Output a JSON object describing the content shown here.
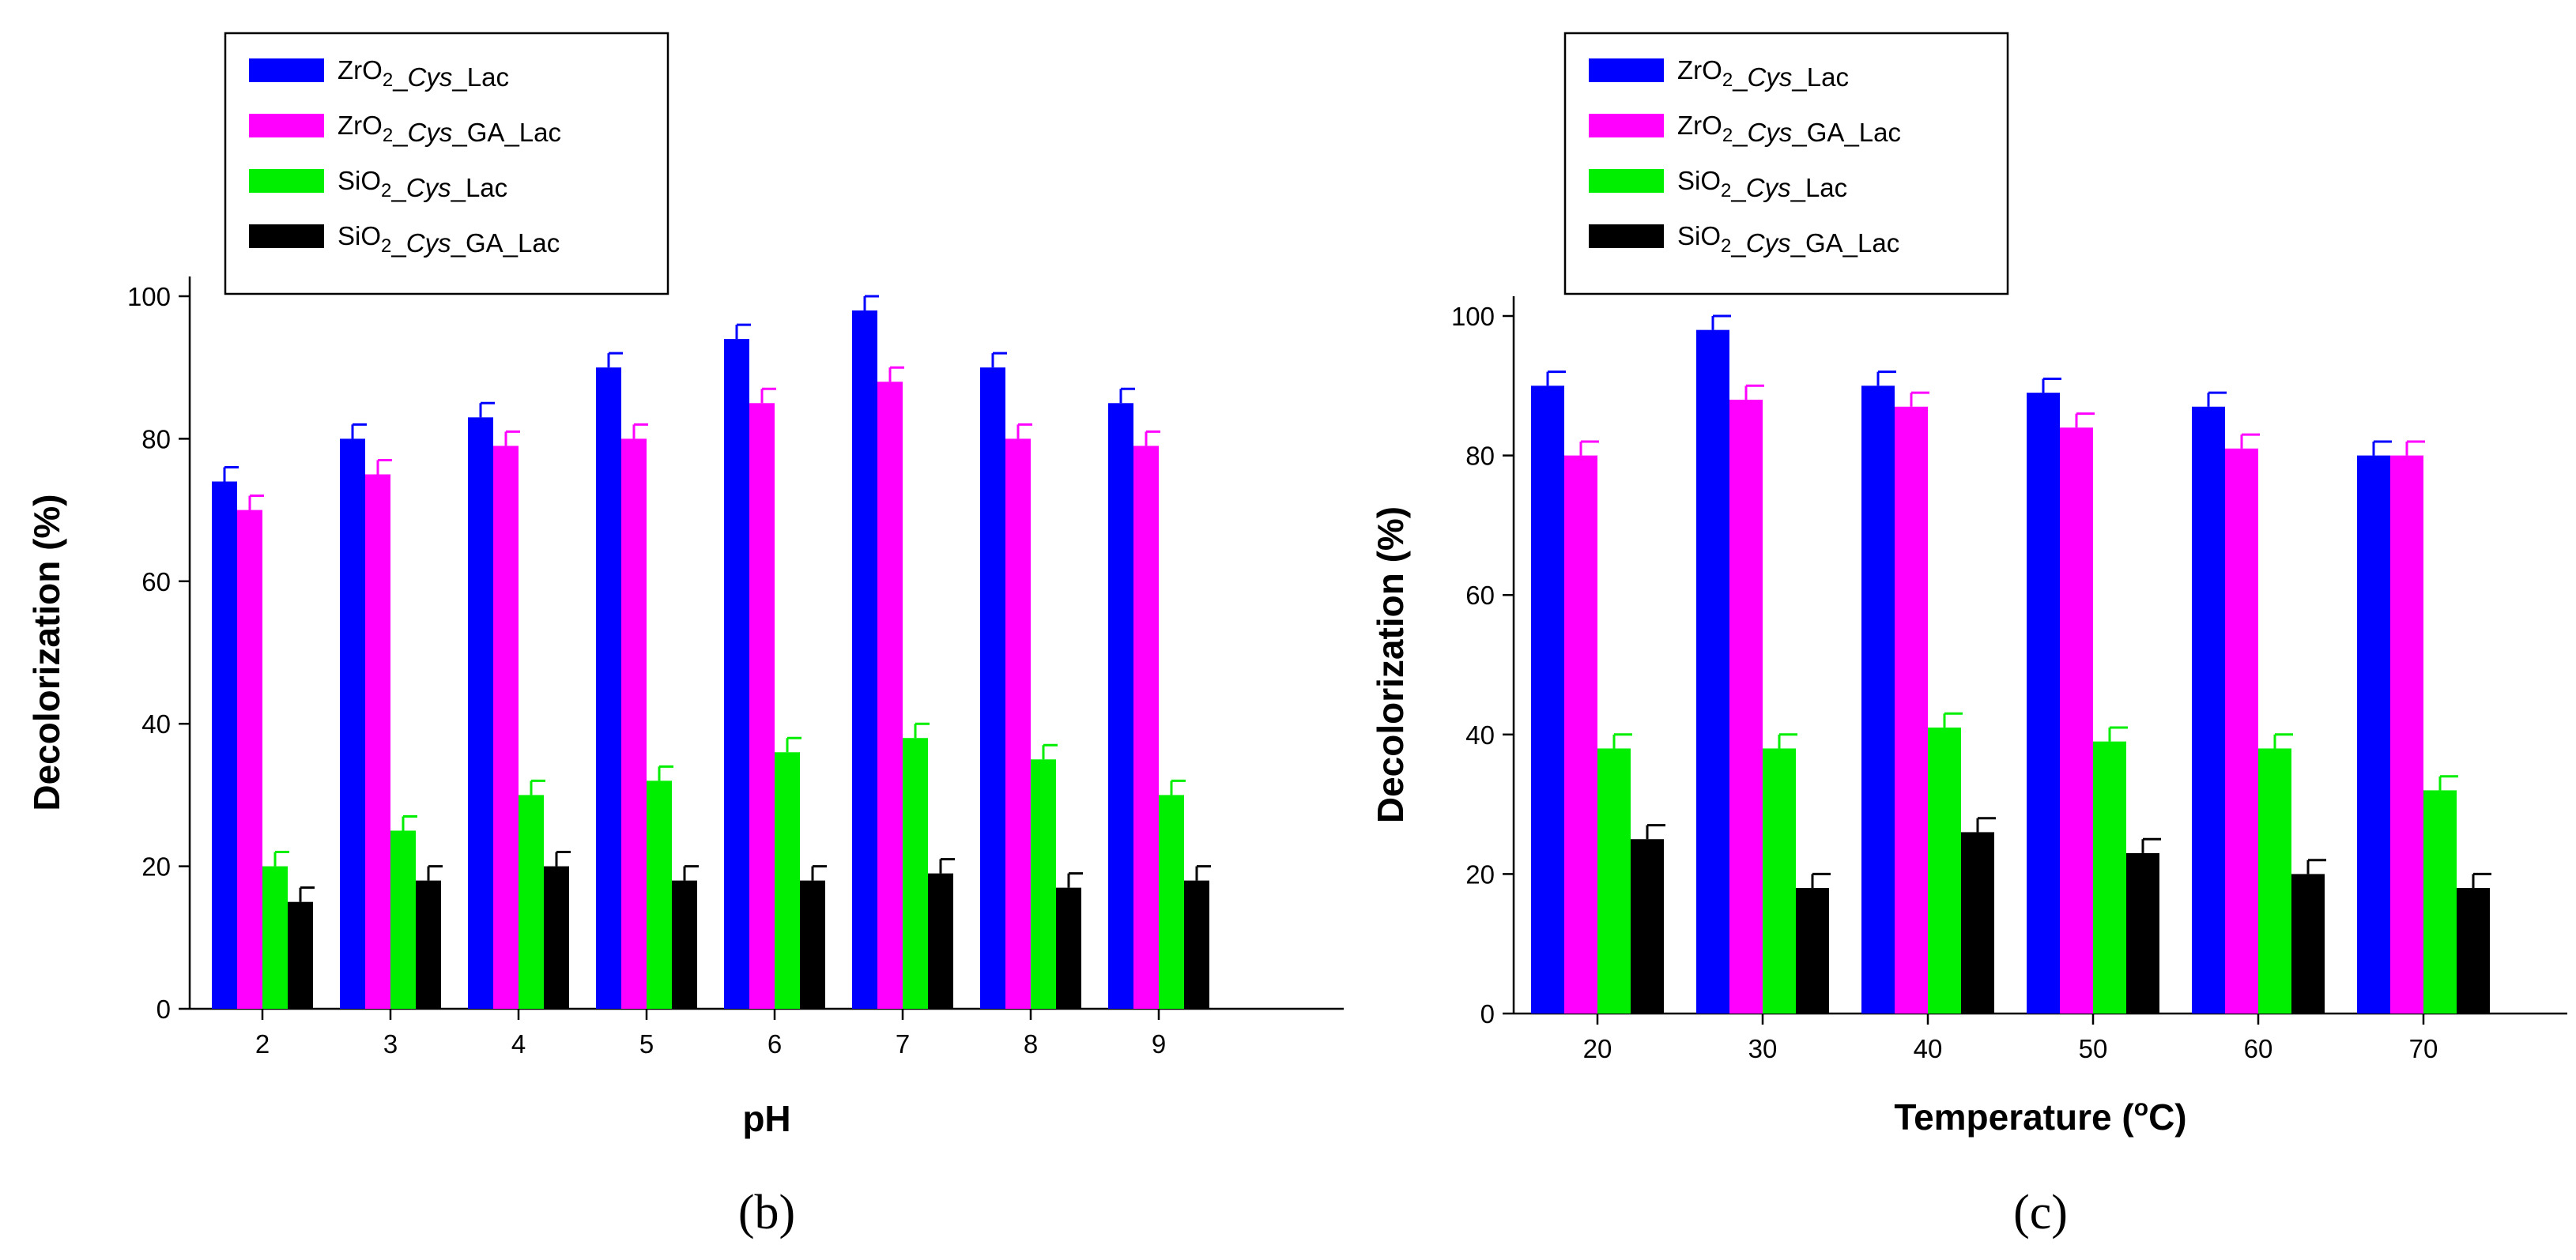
{
  "chart_data": [
    {
      "type": "bar",
      "panel_label": "(b)",
      "xlabel": "pH",
      "ylabel": "Decolorization (%)",
      "categories": [
        "2",
        "3",
        "4",
        "5",
        "6",
        "7",
        "8",
        "9"
      ],
      "ylim": [
        0,
        100
      ],
      "yticks": [
        "0",
        "20",
        "40",
        "60",
        "80",
        "100"
      ],
      "legend_position": "top-left",
      "grid": false,
      "series": [
        {
          "name": "ZrO2_Cys_Lac",
          "color": "#0000ff",
          "values": [
            74,
            80,
            83,
            90,
            94,
            98,
            90,
            85
          ],
          "errors": [
            2,
            2,
            2,
            2,
            2,
            2,
            2,
            2
          ]
        },
        {
          "name": "ZrO2_Cys_GA_Lac",
          "color": "#ff00ff",
          "values": [
            70,
            75,
            79,
            80,
            85,
            88,
            80,
            79
          ],
          "errors": [
            2,
            2,
            2,
            2,
            2,
            2,
            2,
            2
          ]
        },
        {
          "name": "SiO2_Cys_Lac",
          "color": "#00ee00",
          "values": [
            20,
            25,
            30,
            32,
            36,
            38,
            35,
            30
          ],
          "errors": [
            2,
            2,
            2,
            2,
            2,
            2,
            2,
            2
          ]
        },
        {
          "name": "SiO2_Cys_GA_Lac",
          "color": "#000000",
          "values": [
            15,
            18,
            20,
            18,
            18,
            19,
            17,
            18
          ],
          "errors": [
            2,
            2,
            2,
            2,
            2,
            2,
            2,
            2
          ]
        }
      ]
    },
    {
      "type": "bar",
      "panel_label": "(c)",
      "xlabel": "Temperature (oC)",
      "ylabel": "Decolorization (%)",
      "categories": [
        "20",
        "30",
        "40",
        "50",
        "60",
        "70"
      ],
      "ylim": [
        0,
        100
      ],
      "yticks": [
        "0",
        "20",
        "40",
        "60",
        "80",
        "100"
      ],
      "legend_position": "top-left",
      "grid": false,
      "series": [
        {
          "name": "ZrO2_Cys_Lac",
          "color": "#0000ff",
          "values": [
            90,
            98,
            90,
            89,
            87,
            80
          ],
          "errors": [
            2,
            2,
            2,
            2,
            2,
            2
          ]
        },
        {
          "name": "ZrO2_Cys_GA_Lac",
          "color": "#ff00ff",
          "values": [
            80,
            88,
            87,
            84,
            81,
            80
          ],
          "errors": [
            2,
            2,
            2,
            2,
            2,
            2
          ]
        },
        {
          "name": "SiO2_Cys_Lac",
          "color": "#00ee00",
          "values": [
            38,
            38,
            41,
            39,
            38,
            32
          ],
          "errors": [
            2,
            2,
            2,
            2,
            2,
            2
          ]
        },
        {
          "name": "SiO2_Cys_GA_Lac",
          "color": "#000000",
          "values": [
            25,
            18,
            26,
            23,
            20,
            18
          ],
          "errors": [
            2,
            2,
            2,
            2,
            2,
            2
          ]
        }
      ]
    }
  ]
}
